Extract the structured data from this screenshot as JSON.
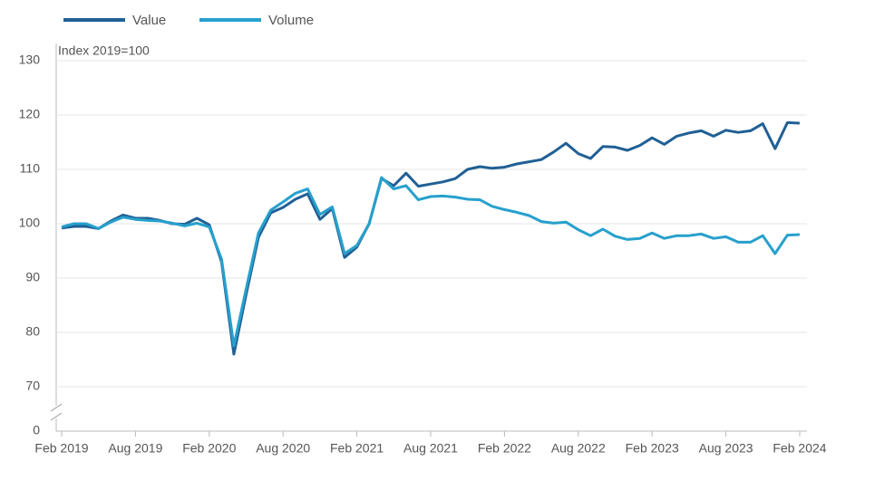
{
  "chart_data": {
    "type": "line",
    "y_axis_label": "Index 2019=100",
    "categories": [
      "Feb 2019",
      null,
      null,
      null,
      null,
      null,
      "Aug 2019",
      null,
      null,
      null,
      null,
      null,
      "Feb 2020",
      null,
      null,
      null,
      null,
      null,
      "Aug 2020",
      null,
      null,
      null,
      null,
      null,
      "Feb 2021",
      null,
      null,
      null,
      null,
      null,
      "Aug 2021",
      null,
      null,
      null,
      null,
      null,
      "Feb 2022",
      null,
      null,
      null,
      null,
      null,
      "Aug 2022",
      null,
      null,
      null,
      null,
      null,
      "Feb 2023",
      null,
      null,
      null,
      null,
      null,
      "Aug 2023",
      null,
      null,
      null,
      null,
      null,
      "Feb 2024"
    ],
    "series": [
      {
        "name": "Value",
        "color": "#206095",
        "values": [
          99.2,
          99.5,
          99.5,
          99.1,
          100.5,
          101.6,
          101.0,
          101.0,
          100.6,
          100.0,
          99.9,
          101.0,
          99.8,
          93,
          76,
          87,
          97.5,
          102,
          103,
          104.5,
          105.5,
          100.8,
          102.8,
          93.8,
          95.7,
          100,
          108.3,
          107,
          109.3,
          106.9,
          107.3,
          107.7,
          108.3,
          110,
          110.5,
          110.2,
          110.4,
          111,
          111.4,
          111.8,
          113.2,
          114.8,
          112.9,
          112,
          114.2,
          114.1,
          113.5,
          114.4,
          115.8,
          114.6,
          116.1,
          116.7,
          117.1,
          116.1,
          117.2,
          116.8,
          117.1,
          118.4,
          113.8,
          118.6,
          118.5
        ]
      },
      {
        "name": "Volume",
        "color": "#27a0cc",
        "values": [
          99.4,
          100,
          100,
          99.1,
          100.3,
          101.2,
          100.8,
          100.6,
          100.5,
          100.1,
          99.6,
          100.1,
          99.4,
          93.5,
          77.5,
          88,
          98.3,
          102.5,
          104,
          105.6,
          106.4,
          101.7,
          103.1,
          94.5,
          96,
          100,
          108.5,
          106.4,
          107,
          104.4,
          105,
          105.1,
          104.9,
          104.5,
          104.4,
          103.2,
          102.6,
          102.1,
          101.5,
          100.4,
          100.1,
          100.3,
          98.9,
          97.8,
          99,
          97.7,
          97.1,
          97.3,
          98.3,
          97.3,
          97.8,
          97.8,
          98.1,
          97.3,
          97.6,
          96.6,
          96.6,
          97.8,
          94.5,
          97.9,
          98
        ]
      }
    ],
    "ylim": [
      0,
      130
    ],
    "yticks": [
      0,
      70,
      80,
      90,
      100,
      110,
      120,
      130
    ],
    "axis_break": [
      0,
      70
    ],
    "grid": true,
    "legend": "top-left"
  }
}
